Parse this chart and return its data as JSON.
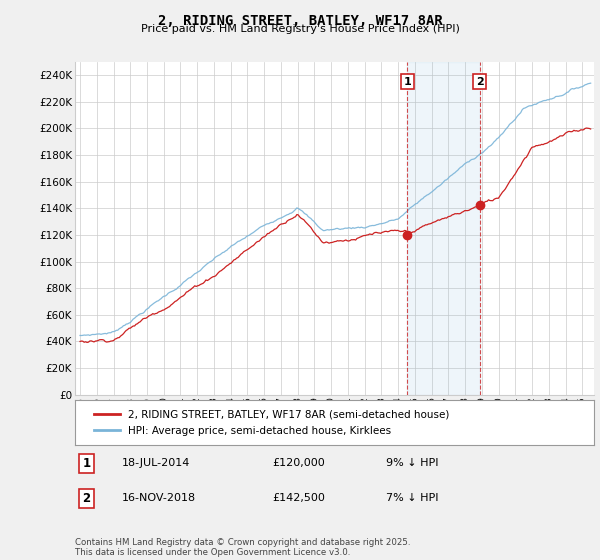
{
  "title": "2, RIDING STREET, BATLEY, WF17 8AR",
  "subtitle": "Price paid vs. HM Land Registry's House Price Index (HPI)",
  "ylim": [
    0,
    250000
  ],
  "yticks": [
    0,
    20000,
    40000,
    60000,
    80000,
    100000,
    120000,
    140000,
    160000,
    180000,
    200000,
    220000,
    240000
  ],
  "hpi_color": "#7ab4d8",
  "sold_color": "#cc2222",
  "background_color": "#f0f0f0",
  "plot_bg_color": "#ffffff",
  "grid_color": "#cccccc",
  "legend_box_color": "#ffffff",
  "sale1_date": "18-JUL-2014",
  "sale1_price": 120000,
  "sale1_pct": "9% ↓ HPI",
  "sale2_date": "16-NOV-2018",
  "sale2_price": 142500,
  "sale2_pct": "7% ↓ HPI",
  "sale1_year": 2014.54,
  "sale2_year": 2018.88,
  "footer": "Contains HM Land Registry data © Crown copyright and database right 2025.\nThis data is licensed under the Open Government Licence v3.0.",
  "legend_label1": "2, RIDING STREET, BATLEY, WF17 8AR (semi-detached house)",
  "legend_label2": "HPI: Average price, semi-detached house, Kirklees"
}
